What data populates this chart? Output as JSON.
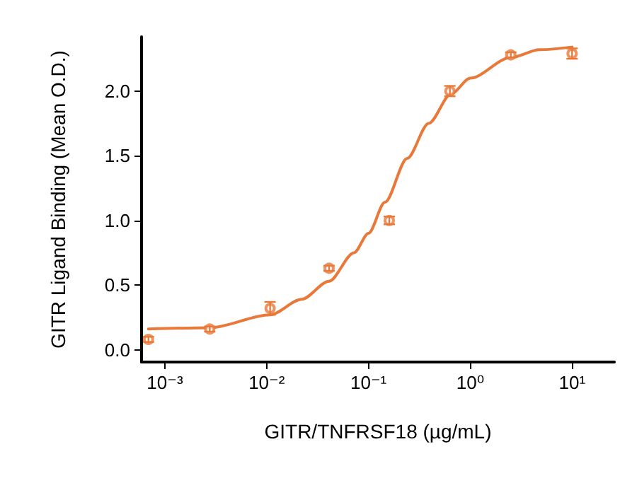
{
  "chart_data": {
    "type": "scatter",
    "xlabel": "GITR/TNFRSF18 (µg/mL)",
    "ylabel": "GITR Ligand Binding (Mean O.D.)",
    "log": "x",
    "grid": false,
    "marker": "circle",
    "xlim": [
      0.00059,
      26
    ],
    "ylim": [
      -0.095,
      2.42
    ],
    "xticks": [
      {
        "value": 0.001,
        "label": "10⁻³"
      },
      {
        "value": 0.01,
        "label": "10⁻²"
      },
      {
        "value": 0.1,
        "label": "10⁻¹"
      },
      {
        "value": 1,
        "label": "10⁰"
      },
      {
        "value": 10,
        "label": "10¹"
      }
    ],
    "yticks": [
      {
        "value": 0,
        "label": "0.0"
      },
      {
        "value": 0.5,
        "label": "0.5"
      },
      {
        "value": 1,
        "label": "1.0"
      },
      {
        "value": 1.5,
        "label": "1.5"
      },
      {
        "value": 2,
        "label": "2.0"
      }
    ],
    "series": [
      {
        "color": "#e8793a",
        "x": [
          0.00069,
          0.00276,
          0.0108,
          0.041,
          0.16,
          0.63,
          2.5,
          10
        ],
        "values": [
          0.08,
          0.16,
          0.32,
          0.63,
          1.0,
          2.0,
          2.28,
          2.29
        ],
        "errors": [
          0.02,
          0.02,
          0.05,
          0.02,
          0.03,
          0.04,
          0.02,
          0.04
        ]
      },
      {
        "type": "line",
        "color": "#e8793a",
        "marker": "none",
        "line_style": "solid",
        "x": [
          0.00069,
          0.00276,
          0.0108,
          0.022,
          0.041,
          0.072,
          0.1,
          0.145,
          0.24,
          0.39,
          0.65,
          1,
          2.5,
          4.8,
          10
        ],
        "values": [
          0.16,
          0.17,
          0.27,
          0.39,
          0.53,
          0.75,
          0.9,
          1.14,
          1.48,
          1.75,
          1.98,
          2.1,
          2.26,
          2.32,
          2.34
        ]
      }
    ]
  }
}
